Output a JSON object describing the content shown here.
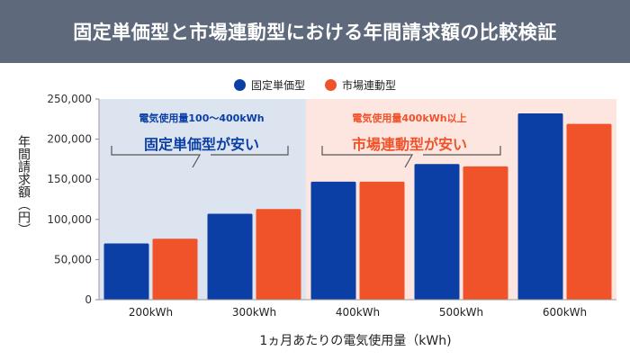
{
  "header": {
    "title": "固定単価型と市場連動型における年間請求額の比較検証"
  },
  "colors": {
    "fixed": "#0b3fa6",
    "market": "#f0522a",
    "header_bg": "#5e6a7c",
    "left_region": "#dce4ef",
    "right_region": "#fce6df"
  },
  "annotations": {
    "left": {
      "sub": "電気使用量100〜400kWh",
      "main": "固定単価型が安い"
    },
    "right": {
      "sub": "電気使用量400kWh以上",
      "main": "市場連動型が安い"
    }
  },
  "chart_data": {
    "type": "bar",
    "categories": [
      "200kWh",
      "300kWh",
      "400kWh",
      "500kWh",
      "600kWh"
    ],
    "series": [
      {
        "name": "固定単価型",
        "values": [
          70000,
          107000,
          147000,
          169000,
          232000
        ]
      },
      {
        "name": "市場連動型",
        "values": [
          76000,
          113000,
          147000,
          166000,
          219000
        ]
      }
    ],
    "ylim": [
      0,
      250000
    ],
    "yticks": [
      "0",
      "50,000",
      "100,000",
      "150,000",
      "200,000",
      "250,000"
    ],
    "ytick_values": [
      0,
      50000,
      100000,
      150000,
      200000,
      250000
    ],
    "ylabel": "年間請求額（円）",
    "xlabel": "1ヵ月あたりの電気使用量（kWh)",
    "legend": [
      "固定単価型",
      "市場連動型"
    ]
  }
}
